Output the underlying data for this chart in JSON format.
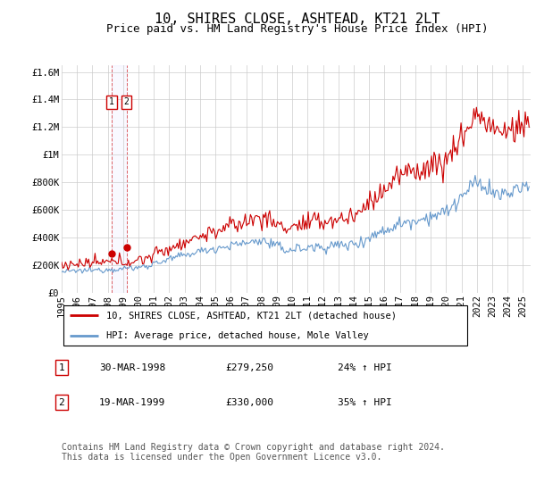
{
  "title": "10, SHIRES CLOSE, ASHTEAD, KT21 2LT",
  "subtitle": "Price paid vs. HM Land Registry's House Price Index (HPI)",
  "ylim": [
    0,
    1650000
  ],
  "yticks": [
    0,
    200000,
    400000,
    600000,
    800000,
    1000000,
    1200000,
    1400000,
    1600000
  ],
  "ytick_labels": [
    "£0",
    "£200K",
    "£400K",
    "£600K",
    "£800K",
    "£1M",
    "£1.2M",
    "£1.4M",
    "£1.6M"
  ],
  "xlim_start": 1995.0,
  "xlim_end": 2025.5,
  "xtick_years": [
    1995,
    1996,
    1997,
    1998,
    1999,
    2000,
    2001,
    2002,
    2003,
    2004,
    2005,
    2006,
    2007,
    2008,
    2009,
    2010,
    2011,
    2012,
    2013,
    2014,
    2015,
    2016,
    2017,
    2018,
    2019,
    2020,
    2021,
    2022,
    2023,
    2024,
    2025
  ],
  "red_line_color": "#cc0000",
  "blue_line_color": "#6699cc",
  "purchase1_x": 1998.24,
  "purchase1_y": 279250,
  "purchase2_x": 1999.22,
  "purchase2_y": 330000,
  "legend_red": "10, SHIRES CLOSE, ASHTEAD, KT21 2LT (detached house)",
  "legend_blue": "HPI: Average price, detached house, Mole Valley",
  "table_rows": [
    [
      "1",
      "30-MAR-1998",
      "£279,250",
      "24% ↑ HPI"
    ],
    [
      "2",
      "19-MAR-1999",
      "£330,000",
      "35% ↑ HPI"
    ]
  ],
  "footnote": "Contains HM Land Registry data © Crown copyright and database right 2024.\nThis data is licensed under the Open Government Licence v3.0.",
  "background_color": "#ffffff",
  "grid_color": "#cccccc",
  "title_fontsize": 11,
  "subtitle_fontsize": 9,
  "tick_fontsize": 7.5,
  "legend_fontsize": 7.5,
  "table_fontsize": 8,
  "footnote_fontsize": 7
}
